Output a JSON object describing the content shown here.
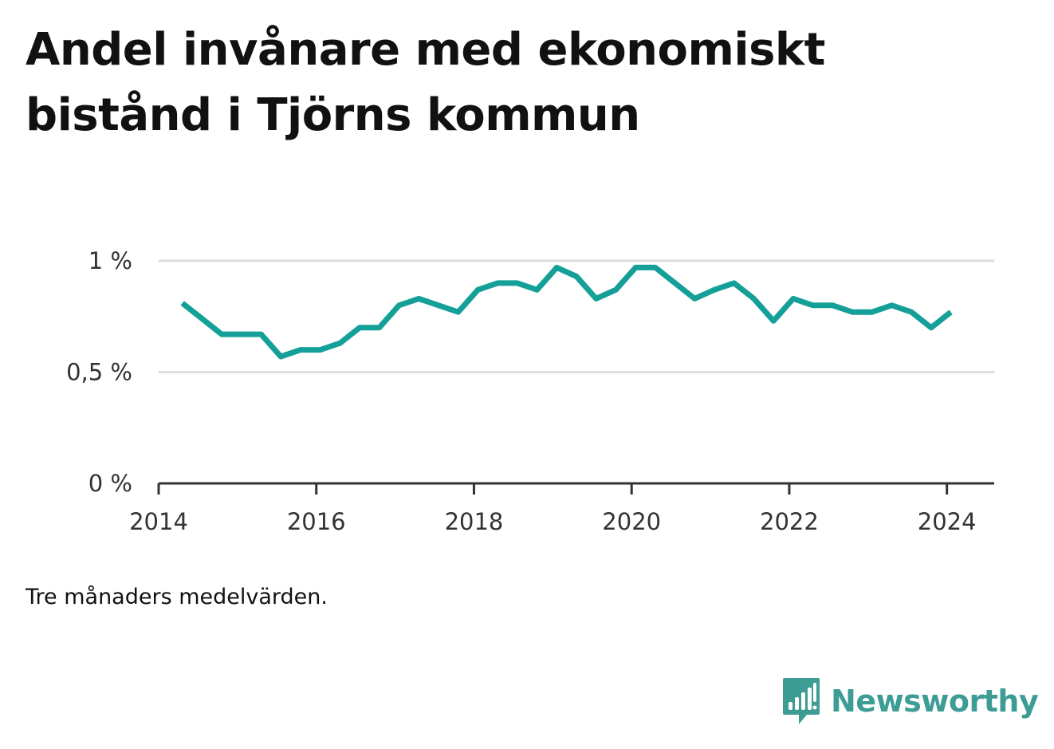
{
  "title_lines": [
    "Andel invånare med ekonomiskt",
    "bistånd i Tjörns kommun"
  ],
  "note": "Tre månaders medelvärden.",
  "brand": {
    "name": "Newsworthy",
    "icon": "bar-chart-speech-bubble-icon",
    "color": "#3d9c94"
  },
  "chart_data": {
    "type": "line",
    "title": "Andel invånare med ekonomiskt bistånd i Tjörns kommun",
    "x_ticks": [
      2014,
      2016,
      2018,
      2020,
      2022,
      2024
    ],
    "y_ticks": [
      0,
      0.5,
      1
    ],
    "y_tick_labels": [
      "0 %",
      "0,5 %",
      "1 %"
    ],
    "xlim": [
      2014,
      2024.6
    ],
    "ylim": [
      0,
      1
    ],
    "grid": true,
    "line_color": "#14a098",
    "series": [
      {
        "x": [
          2014.3,
          2014.55,
          2014.8,
          2015.05,
          2015.3,
          2015.55,
          2015.8,
          2016.05,
          2016.3,
          2016.55,
          2016.8,
          2017.05,
          2017.3,
          2017.55,
          2017.8,
          2018.05,
          2018.3,
          2018.55,
          2018.8,
          2019.05,
          2019.3,
          2019.55,
          2019.8,
          2020.05,
          2020.3,
          2020.55,
          2020.8,
          2021.05,
          2021.3,
          2021.55,
          2021.8,
          2022.05,
          2022.3,
          2022.55,
          2022.8,
          2023.05,
          2023.3,
          2023.55,
          2023.8,
          2024.05
        ],
        "y": [
          0.81,
          0.74,
          0.67,
          0.67,
          0.67,
          0.57,
          0.6,
          0.6,
          0.63,
          0.7,
          0.7,
          0.8,
          0.83,
          0.8,
          0.77,
          0.87,
          0.9,
          0.9,
          0.87,
          0.97,
          0.93,
          0.83,
          0.87,
          0.97,
          0.97,
          0.9,
          0.83,
          0.87,
          0.9,
          0.83,
          0.73,
          0.83,
          0.8,
          0.8,
          0.77,
          0.77,
          0.8,
          0.77,
          0.7,
          0.77
        ]
      }
    ]
  }
}
